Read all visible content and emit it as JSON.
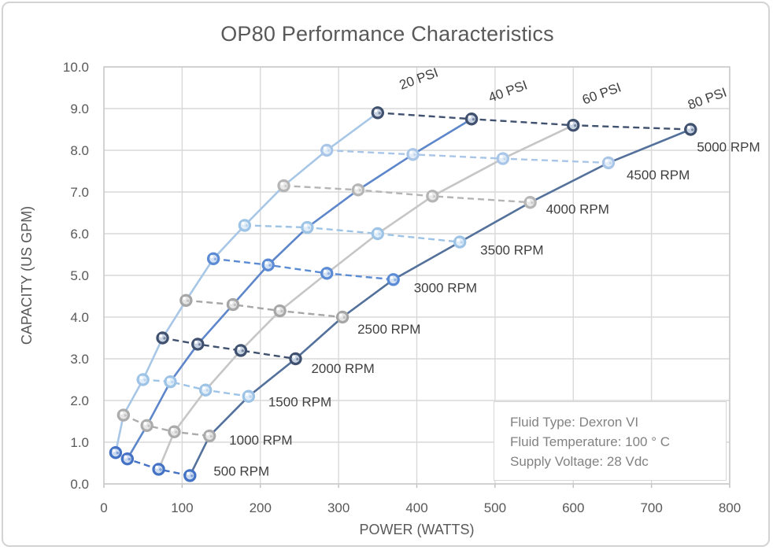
{
  "chart": {
    "title": "OP80 Performance Characteristics",
    "annotation": {
      "line1": "Fluid Type:  Dexron VI",
      "line2": "Fluid Temperature:  100 ° C",
      "line3": "Supply Voltage:  28 Vdc"
    }
  },
  "chart_data": {
    "type": "line",
    "title": "OP80 Performance Characteristics",
    "xlabel": "POWER (WATTS)",
    "ylabel": "CAPACITY (US GPM)",
    "xlim": [
      0,
      800
    ],
    "ylim": [
      0,
      10
    ],
    "grid": true,
    "x_tick_labels": [
      "0",
      "100",
      "200",
      "300",
      "400",
      "500",
      "600",
      "700",
      "800"
    ],
    "y_tick_labels": [
      "0.0",
      "1.0",
      "2.0",
      "3.0",
      "4.0",
      "5.0",
      "6.0",
      "7.0",
      "8.0",
      "9.0",
      "10.0"
    ],
    "rpm_values": [
      500,
      1000,
      1500,
      2000,
      2500,
      3000,
      3500,
      4000,
      4500,
      5000
    ],
    "psi_curves": [
      {
        "name": "20 PSI",
        "color": "#a8c7e7",
        "power_watts": [
          15,
          25,
          50,
          75,
          105,
          140,
          180,
          230,
          285,
          350
        ],
        "capacity_gpm": [
          0.75,
          1.65,
          2.5,
          3.5,
          4.4,
          5.4,
          6.2,
          7.15,
          8.0,
          8.9
        ]
      },
      {
        "name": "40 PSI",
        "color": "#5e87cb",
        "power_watts": [
          30,
          55,
          85,
          120,
          165,
          210,
          260,
          325,
          395,
          470
        ],
        "capacity_gpm": [
          0.6,
          1.4,
          2.45,
          3.35,
          4.3,
          5.25,
          6.15,
          7.05,
          7.9,
          8.75
        ]
      },
      {
        "name": "60 PSI",
        "color": "#c6c6c6",
        "power_watts": [
          70,
          90,
          130,
          175,
          225,
          285,
          350,
          420,
          510,
          600
        ],
        "capacity_gpm": [
          0.35,
          1.25,
          2.25,
          3.2,
          4.15,
          5.05,
          6.0,
          6.9,
          7.8,
          8.6
        ]
      },
      {
        "name": "80 PSI",
        "color": "#53719b",
        "power_watts": [
          110,
          135,
          185,
          245,
          305,
          370,
          455,
          545,
          645,
          750
        ],
        "capacity_gpm": [
          0.2,
          1.15,
          2.1,
          3.0,
          4.0,
          4.9,
          5.8,
          6.75,
          7.7,
          8.5
        ]
      }
    ],
    "rpm_lines": [
      {
        "name": "500 RPM",
        "color": "#4472c4",
        "marker_fill": "#cddbf0"
      },
      {
        "name": "1000 RPM",
        "color": "#ababab",
        "marker_fill": "#e6e6e6"
      },
      {
        "name": "1500 RPM",
        "color": "#9dc3e6",
        "marker_fill": "#e1edf8"
      },
      {
        "name": "2000 RPM",
        "color": "#3f516e",
        "marker_fill": "#c8d3e4"
      },
      {
        "name": "2500 RPM",
        "color": "#a6a6a6",
        "marker_fill": "#e4e4e4"
      },
      {
        "name": "3000 RPM",
        "color": "#5b8bd4",
        "marker_fill": "#d4e2f4"
      },
      {
        "name": "3500 RPM",
        "color": "#9dc3e6",
        "marker_fill": "#e1edf8"
      },
      {
        "name": "4000 RPM",
        "color": "#b5b5b5",
        "marker_fill": "#e9e9e9"
      },
      {
        "name": "4500 RPM",
        "color": "#a9c6e8",
        "marker_fill": "#e3edf8"
      },
      {
        "name": "5000 RPM",
        "color": "#3f516e",
        "marker_fill": "#c8d3e4"
      }
    ],
    "legend": "none",
    "annotation_lines": [
      "Fluid Type:  Dexron VI",
      "Fluid Temperature:  100 ° C",
      "Supply Voltage:  28 Vdc"
    ]
  }
}
